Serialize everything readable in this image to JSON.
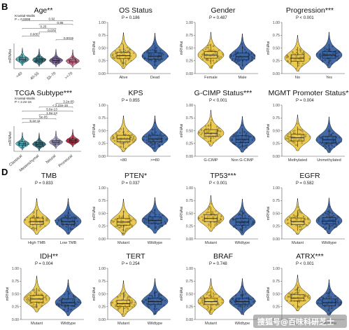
{
  "figure": {
    "panel_labels": [
      "B",
      "D"
    ],
    "watermark": "搜狐号@百味科研芝士",
    "colors": {
      "yellow": "#e8c440",
      "blue": "#2f5a9c",
      "cyan": "#4fbfd0",
      "teal": "#3b7f8e",
      "violet": "#8a6bb8",
      "lavender": "#a9a4d4",
      "pink": "#e67a9e",
      "red": "#c8324a",
      "green": "#4f9b54"
    }
  },
  "chart_data": [
    {
      "id": "age",
      "type": "violin",
      "title": "Age**",
      "subtitle": "Kruskal-Wallis, P = 0.0099",
      "ylabel": "mRNAsi",
      "ylim": [
        0,
        1
      ],
      "categories": [
        "<40",
        "40-55",
        "55-70",
        ">=70"
      ],
      "colors": [
        "#4fbfd0",
        "#3b7f8e",
        "#8a6bb8",
        "#e67a9e"
      ],
      "medians": [
        0.37,
        0.34,
        0.32,
        0.3
      ],
      "comparisons": [
        {
          "pair": [
            0,
            3
          ],
          "label": "0.92"
        },
        {
          "pair": [
            1,
            3
          ],
          "label": "0.85"
        },
        {
          "pair": [
            0,
            2
          ],
          "label": "0.25"
        },
        {
          "pair": [
            1,
            2
          ],
          "label": "0.078"
        },
        {
          "pair": [
            0,
            1
          ],
          "label": "0.0057"
        },
        {
          "pair": [
            2,
            3
          ],
          "label": "0.0015"
        }
      ]
    },
    {
      "id": "os",
      "type": "violin",
      "title": "OS Status",
      "subtitle": "P = 0.186",
      "ylabel": "mRNAsi",
      "ylim": [
        0,
        1
      ],
      "yticks": [
        0,
        0.25,
        0.5,
        0.75,
        1
      ],
      "categories": [
        "Alive",
        "Dead"
      ],
      "colors": [
        "#e8c440",
        "#2f5a9c"
      ],
      "medians": [
        0.35,
        0.34
      ]
    },
    {
      "id": "gender",
      "type": "violin",
      "title": "Gender",
      "subtitle": "P = 0.487",
      "ylabel": "mRNAsi",
      "ylim": [
        0,
        1
      ],
      "yticks": [
        0,
        0.25,
        0.5,
        0.75,
        1
      ],
      "categories": [
        "Female",
        "Male"
      ],
      "colors": [
        "#e8c440",
        "#2f5a9c"
      ],
      "medians": [
        0.36,
        0.33
      ]
    },
    {
      "id": "progression",
      "type": "violin",
      "title": "Progression***",
      "subtitle": "P < 0.001",
      "ylabel": "mRNAsi",
      "ylim": [
        0,
        1
      ],
      "yticks": [
        0,
        0.25,
        0.5,
        0.75,
        1
      ],
      "categories": [
        "No",
        "Yes"
      ],
      "colors": [
        "#e8c440",
        "#2f5a9c"
      ],
      "medians": [
        0.3,
        0.36
      ]
    },
    {
      "id": "tcga",
      "type": "violin",
      "title": "TCGA Subtype***",
      "subtitle": "Kruskal-Wallis, P < 2.2e-16",
      "ylabel": "mRNAsi",
      "ylim": [
        0,
        1
      ],
      "categories": [
        "Classical",
        "Mesenchymal",
        "Neural",
        "Proneural"
      ],
      "colors": [
        "#4fbfd0",
        "#3b7f8e",
        "#a9a4d4",
        "#c8324a"
      ],
      "medians": [
        0.3,
        0.28,
        0.36,
        0.42
      ],
      "comparisons": [
        {
          "pair": [
            2,
            3
          ],
          "label": "3.2e-05"
        },
        {
          "pair": [
            1,
            3
          ],
          "label": "< 2.22e-16"
        },
        {
          "pair": [
            0,
            3
          ],
          "label": "5.6e-13"
        },
        {
          "pair": [
            1,
            2
          ],
          "label": "1.9e-13"
        },
        {
          "pair": [
            0,
            2
          ],
          "label": "5e-05"
        },
        {
          "pair": [
            0,
            1
          ],
          "label": "5.1e-11"
        }
      ]
    },
    {
      "id": "kps",
      "type": "violin",
      "title": "KPS",
      "subtitle": "P = 0.855",
      "ylabel": "mRNAsi",
      "ylim": [
        0,
        1
      ],
      "yticks": [
        0,
        0.25,
        0.5,
        0.75,
        1
      ],
      "categories": [
        "<80",
        ">=80"
      ],
      "colors": [
        "#e8c440",
        "#2f5a9c"
      ],
      "medians": [
        0.34,
        0.34
      ]
    },
    {
      "id": "gcimp",
      "type": "violin",
      "title": "G-CIMP Status***",
      "subtitle": "P < 0.001",
      "ylabel": "mRNAsi",
      "ylim": [
        0,
        1
      ],
      "yticks": [
        0,
        0.25,
        0.5,
        0.75,
        1
      ],
      "categories": [
        "G-CIMP",
        "Non G-CIMP"
      ],
      "colors": [
        "#e8c440",
        "#2f5a9c"
      ],
      "medians": [
        0.45,
        0.33
      ]
    },
    {
      "id": "mgmt",
      "type": "violin",
      "title": "MGMT Promoter Status**",
      "subtitle": "P = 0.004",
      "ylabel": "mRNAsi",
      "ylim": [
        0,
        1
      ],
      "yticks": [
        0,
        0.25,
        0.5,
        0.75,
        1
      ],
      "categories": [
        "Methylated",
        "Unmethylated"
      ],
      "colors": [
        "#e8c440",
        "#2f5a9c"
      ],
      "medians": [
        0.36,
        0.32
      ]
    },
    {
      "id": "tmb",
      "type": "violin",
      "title": "TMB",
      "subtitle": "P = 0.833",
      "ylabel": "",
      "ylim": [
        0,
        1
      ],
      "categories": [
        "High TMB",
        "Low TMB"
      ],
      "colors": [
        "#e8c440",
        "#2f5a9c"
      ],
      "medians": [
        0.34,
        0.34
      ]
    },
    {
      "id": "pten",
      "type": "violin",
      "title": "PTEN*",
      "subtitle": "P = 0.037",
      "ylabel": "mRNAsi",
      "ylim": [
        0,
        1
      ],
      "yticks": [
        0,
        0.25,
        0.5,
        0.75,
        1
      ],
      "categories": [
        "Mutant",
        "Wildtype"
      ],
      "colors": [
        "#e8c440",
        "#2f5a9c"
      ],
      "medians": [
        0.33,
        0.36
      ]
    },
    {
      "id": "tp53",
      "type": "violin",
      "title": "TP53***",
      "subtitle": "P < 0.001",
      "ylabel": "mRNAsi",
      "ylim": [
        0,
        1
      ],
      "yticks": [
        0,
        0.25,
        0.5,
        0.75,
        1
      ],
      "categories": [
        "Mutant",
        "Wildtype"
      ],
      "colors": [
        "#e8c440",
        "#2f5a9c"
      ],
      "medians": [
        0.4,
        0.33
      ]
    },
    {
      "id": "egfr",
      "type": "violin",
      "title": "EGFR",
      "subtitle": "P = 0.582",
      "ylabel": "mRNAsi",
      "ylim": [
        0,
        1
      ],
      "yticks": [
        0,
        0.25,
        0.5,
        0.75,
        1
      ],
      "categories": [
        "Mutant",
        "Wildtype"
      ],
      "colors": [
        "#e8c440",
        "#2f5a9c"
      ],
      "medians": [
        0.34,
        0.35
      ]
    },
    {
      "id": "idh",
      "type": "violin",
      "title": "IDH**",
      "subtitle": "P = 0.004",
      "ylabel": "mRNAsi",
      "ylim": [
        0,
        1
      ],
      "yticks": [
        0,
        0.25,
        0.5,
        0.75,
        1
      ],
      "categories": [
        "Mutant",
        "Wildtype"
      ],
      "colors": [
        "#e8c440",
        "#2f5a9c"
      ],
      "medians": [
        0.4,
        0.33
      ]
    },
    {
      "id": "tert",
      "type": "violin",
      "title": "TERT",
      "subtitle": "P = 0.254",
      "ylabel": "mRNAsi",
      "ylim": [
        0,
        1
      ],
      "yticks": [
        0,
        0.25,
        0.5,
        0.75,
        1
      ],
      "categories": [
        "Mutant",
        "Wildtype"
      ],
      "colors": [
        "#e8c440",
        "#2f5a9c"
      ],
      "medians": [
        0.31,
        0.35
      ]
    },
    {
      "id": "braf",
      "type": "violin",
      "title": "BRAF",
      "subtitle": "P = 0.748",
      "ylabel": "mRNAsi",
      "ylim": [
        0,
        1
      ],
      "yticks": [
        0,
        0.25,
        0.5,
        0.75,
        1
      ],
      "categories": [
        "Mutant",
        "Wildtype"
      ],
      "colors": [
        "#e8c440",
        "#2f5a9c"
      ],
      "medians": [
        0.35,
        0.35
      ]
    },
    {
      "id": "atrx",
      "type": "violin",
      "title": "ATRX***",
      "subtitle": "P < 0.001",
      "ylabel": "mRNAsi",
      "ylim": [
        0,
        1
      ],
      "yticks": [
        0,
        0.25,
        0.5,
        0.75,
        1
      ],
      "categories": [
        "Mutant",
        "Wildtype"
      ],
      "colors": [
        "#e8c440",
        "#2f5a9c"
      ],
      "medians": [
        0.42,
        0.33
      ]
    }
  ]
}
